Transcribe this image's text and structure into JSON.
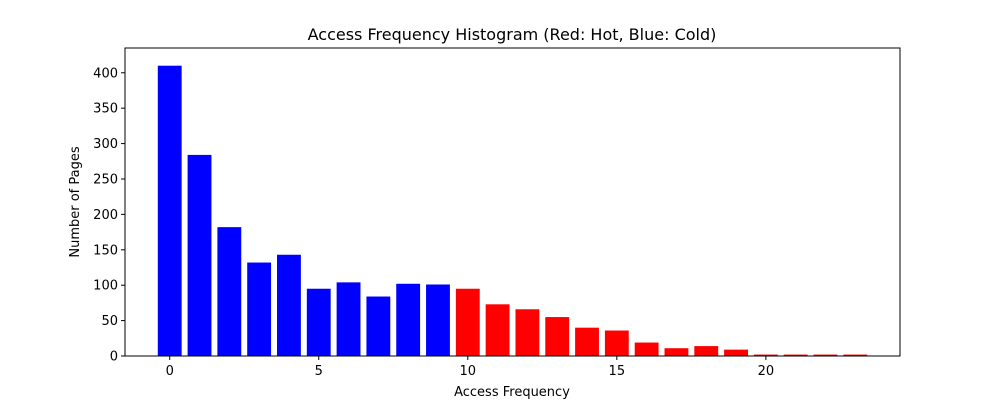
{
  "chart_data": {
    "type": "bar",
    "title": "Access Frequency Histogram (Red: Hot, Blue: Cold)",
    "xlabel": "Access Frequency",
    "ylabel": "Number of Pages",
    "x": [
      0,
      1,
      2,
      3,
      4,
      5,
      6,
      7,
      8,
      9,
      10,
      11,
      12,
      13,
      14,
      15,
      16,
      17,
      18,
      19,
      20,
      21,
      22,
      23
    ],
    "values": [
      410,
      284,
      182,
      132,
      143,
      95,
      104,
      84,
      102,
      101,
      95,
      73,
      66,
      55,
      40,
      36,
      19,
      11,
      14,
      9,
      2,
      2,
      2,
      2
    ],
    "bar_colors": [
      "#0000ff",
      "#0000ff",
      "#0000ff",
      "#0000ff",
      "#0000ff",
      "#0000ff",
      "#0000ff",
      "#0000ff",
      "#0000ff",
      "#0000ff",
      "#ff0000",
      "#ff0000",
      "#ff0000",
      "#ff0000",
      "#ff0000",
      "#ff0000",
      "#ff0000",
      "#ff0000",
      "#ff0000",
      "#ff0000",
      "#ff0000",
      "#ff0000",
      "#ff0000",
      "#ff0000"
    ],
    "hot_color": "#ff0000",
    "cold_color": "#0000ff",
    "xlim": [
      -1.5,
      24.5
    ],
    "ylim": [
      0,
      435
    ],
    "xticks": [
      0,
      5,
      10,
      15,
      20
    ],
    "yticks": [
      0,
      50,
      100,
      150,
      200,
      250,
      300,
      350,
      400
    ],
    "grid": false,
    "legend": "none"
  }
}
